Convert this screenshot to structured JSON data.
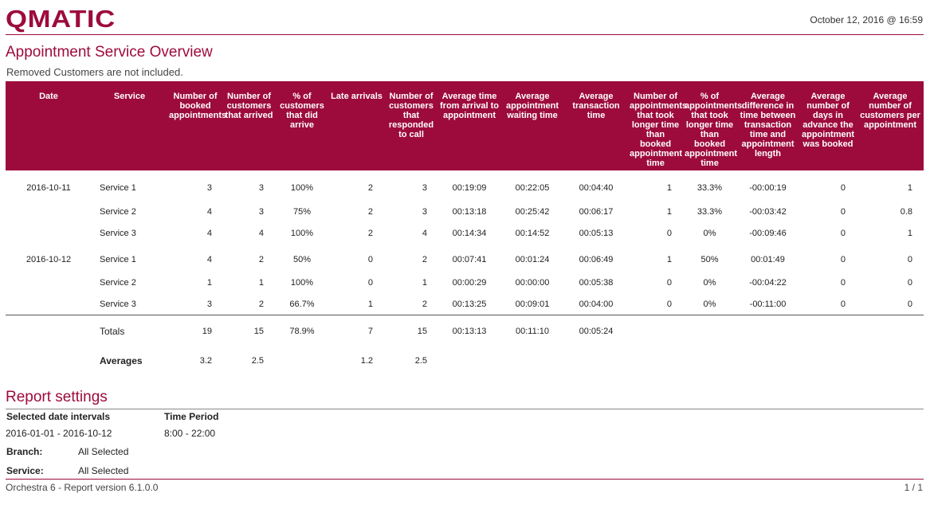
{
  "header": {
    "logo": "QMATIC",
    "date": "October 12, 2016 @ 16:59"
  },
  "title": "Appointment Service Overview",
  "note": "Removed Customers are not included.",
  "table": {
    "columns": [
      "Date",
      "Service",
      "Number of booked appointments",
      "Number of customers that arrived",
      "% of customers that did arrive",
      "Late arrivals",
      "Number of customers that responded to call",
      "Average time from arrival to appointment",
      "Average appointment waiting time",
      "Average transaction time",
      "Number of appointments that took longer time than booked appointment time",
      "% of appointments that took longer time than booked appointment time",
      "Average difference in time between transaction time and appointment length",
      "Average number of days in advance the appointment was booked",
      "Average number of customers per appointment"
    ],
    "rows": [
      [
        "2016-10-11",
        "Service 1",
        "3",
        "3",
        "100%",
        "2",
        "3",
        "00:19:09",
        "00:22:05",
        "00:04:40",
        "1",
        "33.3%",
        "-00:00:19",
        "0",
        "1"
      ],
      [
        null,
        "Service 2",
        "4",
        "3",
        "75%",
        "2",
        "3",
        "00:13:18",
        "00:25:42",
        "00:06:17",
        "1",
        "33.3%",
        "-00:03:42",
        "0",
        "0.8"
      ],
      [
        null,
        "Service 3",
        "4",
        "4",
        "100%",
        "2",
        "4",
        "00:14:34",
        "00:14:52",
        "00:05:13",
        "0",
        "0%",
        "-00:09:46",
        "0",
        "1"
      ],
      [
        "2016-10-12",
        "Service 1",
        "4",
        "2",
        "50%",
        "0",
        "2",
        "00:07:41",
        "00:01:24",
        "00:06:49",
        "1",
        "50%",
        "00:01:49",
        "0",
        "0"
      ],
      [
        null,
        "Service 2",
        "1",
        "1",
        "100%",
        "0",
        "1",
        "00:00:29",
        "00:00:00",
        "00:05:38",
        "0",
        "0%",
        "-00:04:22",
        "0",
        "0"
      ],
      [
        null,
        "Service 3",
        "3",
        "2",
        "66.7%",
        "1",
        "2",
        "00:13:25",
        "00:09:01",
        "00:04:00",
        "0",
        "0%",
        "-00:11:00",
        "0",
        "0"
      ]
    ],
    "totals": [
      null,
      "Totals",
      "19",
      "15",
      "78.9%",
      "7",
      "15",
      "00:13:13",
      "00:11:10",
      "00:05:24",
      null,
      null,
      null,
      null,
      null
    ],
    "averages": [
      null,
      "Averages",
      "3.2",
      "2.5",
      null,
      "1.2",
      "2.5",
      null,
      null,
      null,
      null,
      null,
      null,
      null,
      null
    ]
  },
  "settings": {
    "title": "Report settings",
    "date_label": "Selected date intervals",
    "date_value": "2016-01-01 - 2016-10-12",
    "time_label": "Time Period",
    "time_value": "8:00 - 22:00",
    "branch_label": "Branch:",
    "branch_value": "All Selected",
    "service_label": "Service:",
    "service_value": "All Selected"
  },
  "footer": {
    "version": "Orchestra 6 - Report version 6.1.0.0",
    "page": "1 / 1"
  }
}
